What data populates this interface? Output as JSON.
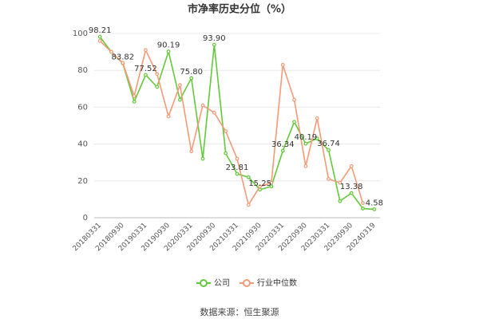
{
  "chart_data": {
    "type": "line",
    "title": "市净率历史分位（%）",
    "categories": [
      "20180331",
      null,
      "20180930",
      null,
      "20190331",
      null,
      "20190930",
      null,
      "20200331",
      null,
      "20200930",
      null,
      "20210331",
      null,
      "20210930",
      null,
      "20220331",
      null,
      "20220930",
      null,
      "20230331",
      null,
      "20230930",
      null,
      "20240319"
    ],
    "series": [
      {
        "name": "公司",
        "color": "#63c83a",
        "values": [
          98.21,
          90,
          83.82,
          63,
          77.52,
          71,
          90.19,
          64,
          75.8,
          32,
          93.9,
          35,
          23.81,
          22,
          15.25,
          17,
          36.34,
          52,
          40.19,
          43,
          36.74,
          9,
          13.38,
          5,
          4.58
        ],
        "value_labels": [
          "98.21",
          null,
          "83.82",
          null,
          "77.52",
          null,
          "90.19",
          null,
          "75.80",
          null,
          "93.90",
          null,
          "23.81",
          null,
          "15.25",
          null,
          "36.34",
          null,
          "40.19",
          null,
          "36.74",
          null,
          "13.38",
          null,
          "4.58"
        ]
      },
      {
        "name": "行业中位数",
        "color": "#f39a78",
        "values": [
          96,
          90,
          84,
          66,
          91,
          78,
          55,
          72,
          36,
          61,
          57,
          47,
          32,
          7,
          17,
          19,
          83,
          64,
          28,
          54,
          21,
          19,
          28,
          8,
          null
        ]
      }
    ],
    "ylim": [
      0,
      100
    ],
    "yticks": [
      0,
      20,
      40,
      60,
      80,
      100
    ],
    "grid": true,
    "source": "数据来源：恒生聚源"
  }
}
